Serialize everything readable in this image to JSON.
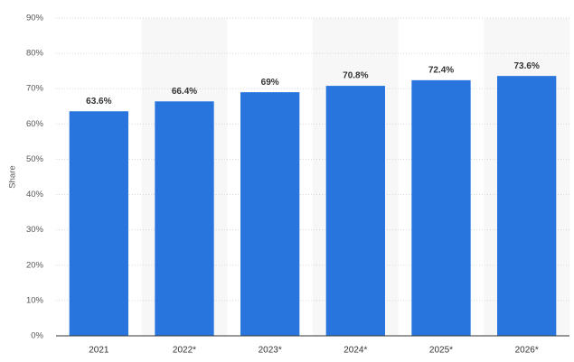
{
  "chart_data": {
    "type": "bar",
    "y_label": "Share",
    "categories": [
      "2021",
      "2022*",
      "2023*",
      "2024*",
      "2025*",
      "2026*"
    ],
    "values": [
      63.6,
      66.4,
      69,
      70.8,
      72.4,
      73.6
    ],
    "value_labels": [
      "63.6%",
      "66.4%",
      "69%",
      "70.8%",
      "72.4%",
      "73.6%"
    ],
    "color": "#2876dd",
    "ylim": [
      0,
      90
    ],
    "yticks": [
      {
        "value": 0,
        "label": "0%"
      },
      {
        "value": 10,
        "label": "10%"
      },
      {
        "value": 20,
        "label": "20%"
      },
      {
        "value": 30,
        "label": "30%"
      },
      {
        "value": 40,
        "label": "40%"
      },
      {
        "value": 50,
        "label": "50%"
      },
      {
        "value": 60,
        "label": "60%"
      },
      {
        "value": 70,
        "label": "70%"
      },
      {
        "value": 80,
        "label": "80%"
      },
      {
        "value": 90,
        "label": "90%"
      }
    ],
    "grid": true
  }
}
